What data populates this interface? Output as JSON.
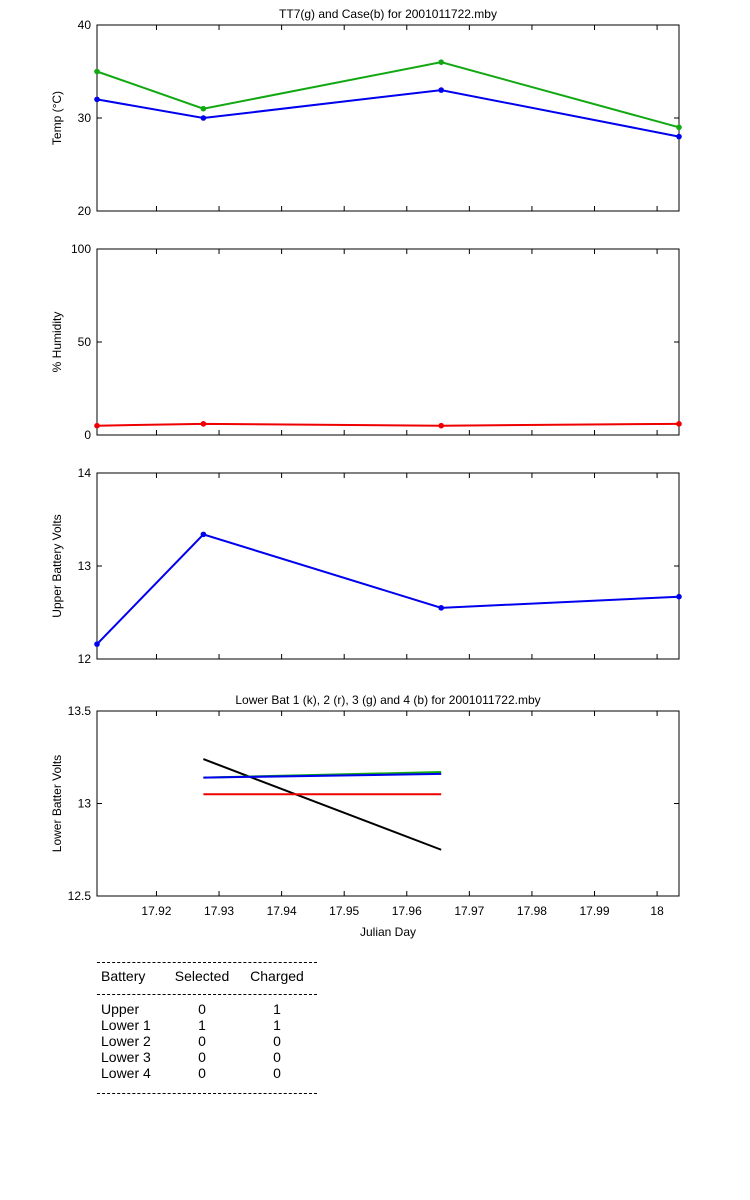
{
  "chart_data": [
    {
      "type": "line",
      "title": "TT7(g) and Case(b) for 2001011722.mby",
      "xlabel": "",
      "ylabel": "Temp  (°C)",
      "xlim": [
        17.9105,
        18.0035
      ],
      "ylim": [
        20,
        40
      ],
      "yticks": [
        "20",
        "30",
        "40"
      ],
      "x": [
        17.9105,
        17.9275,
        17.9655,
        18.0035
      ],
      "series": [
        {
          "name": "TT7",
          "color": "#11a811",
          "values": [
            35,
            31,
            36,
            29
          ]
        },
        {
          "name": "Case",
          "color": "#0000ee",
          "values": [
            32,
            30,
            33,
            28
          ]
        }
      ]
    },
    {
      "type": "line",
      "title": "",
      "xlabel": "",
      "ylabel": "% Humidity",
      "xlim": [
        17.9105,
        18.0035
      ],
      "ylim": [
        0,
        100
      ],
      "yticks": [
        "0",
        "50",
        "100"
      ],
      "x": [
        17.9105,
        17.9275,
        17.9655,
        18.0035
      ],
      "series": [
        {
          "name": "Humidity",
          "color": "#ee0000",
          "values": [
            5,
            6,
            5,
            6
          ]
        }
      ]
    },
    {
      "type": "line",
      "title": "",
      "xlabel": "",
      "ylabel": "Upper Battery Volts",
      "xlim": [
        17.9105,
        18.0035
      ],
      "ylim": [
        12,
        14
      ],
      "yticks": [
        "12",
        "13",
        "14"
      ],
      "x": [
        17.9105,
        17.9275,
        17.9655,
        18.0035
      ],
      "series": [
        {
          "name": "Upper",
          "color": "#0000ee",
          "values": [
            12.16,
            13.34,
            12.55,
            12.67
          ]
        }
      ]
    },
    {
      "type": "line",
      "title": "Lower Bat 1 (k), 2 (r), 3 (g) and 4 (b) for 2001011722.mby",
      "xlabel": "Julian Day",
      "ylabel": "Lower Batter Volts",
      "xlim": [
        17.9105,
        18.0035
      ],
      "ylim": [
        12.5,
        13.5
      ],
      "yticks": [
        "12.5",
        "13",
        "13.5"
      ],
      "xticks": [
        "17.92",
        "17.93",
        "17.94",
        "17.95",
        "17.96",
        "17.97",
        "17.98",
        "17.99",
        "18"
      ],
      "x": [
        17.9275,
        17.9655
      ],
      "series": [
        {
          "name": "Lower 1",
          "color": "#000000",
          "values": [
            13.24,
            12.75
          ]
        },
        {
          "name": "Lower 2",
          "color": "#ee0000",
          "values": [
            13.05,
            13.05
          ]
        },
        {
          "name": "Lower 3",
          "color": "#11a811",
          "values": [
            13.14,
            13.17
          ]
        },
        {
          "name": "Lower 4",
          "color": "#0000ee",
          "values": [
            13.14,
            13.16
          ]
        }
      ]
    }
  ],
  "battery_table": {
    "headers": [
      "Battery",
      "Selected",
      "Charged"
    ],
    "rows": [
      [
        "Upper",
        "0",
        "1"
      ],
      [
        "Lower 1",
        "1",
        "1"
      ],
      [
        "Lower 2",
        "0",
        "0"
      ],
      [
        "Lower 3",
        "0",
        "0"
      ],
      [
        "Lower 4",
        "0",
        "0"
      ]
    ]
  }
}
